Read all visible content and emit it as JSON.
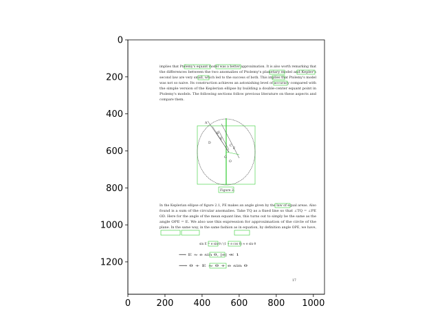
{
  "axes": {
    "x_ticks": [
      "0",
      "200",
      "400",
      "600",
      "800",
      "1000"
    ],
    "y_ticks": [
      "0",
      "200",
      "400",
      "600",
      "800",
      "1000",
      "1200"
    ],
    "xlim": [
      0,
      1060
    ],
    "ylim": [
      1375,
      0
    ]
  },
  "document": {
    "paragraph_1": [
      "implies that Ptolemy's equant model was a better approximation. It is also worth remarking that",
      "the differences between the two anomalies of Ptolemy's planetary model and Kepler's",
      "second law are very small, which led to the success of both. This implies that Ptolemy's model",
      "was not so naive. Its construction achieves an astonishing level of accuracy compared with",
      "the simple version of the Keplerian ellipse by building a double-center equant point in",
      "Ptolemy's models. The following sections follow previous literature on these aspects and",
      "compare them."
    ],
    "figure_caption": "Figure 2.",
    "figure_labels": {
      "point_a": "A",
      "point_b": "B",
      "point_e": "E",
      "point_d": "D",
      "point_c": "C",
      "point_f": "F",
      "point_g": "G",
      "point_o": "O"
    },
    "paragraph_2": [
      "In the Keplerian ellipse of figure 2.1, PE makes an angle given by the law of equal areas. Also",
      "found is a sum of the circular anomalies. Take TQ as a fixed line so that ∠TQ = ∠PE",
      "OD. Here for the angle of the mean equant line, this turns out to simply be the same as the",
      "angle OPE = E. We also use this expression for approximation of the circle of the",
      "plane. In the same way, in the same fashion as in equation, by definition angle OPE, we have,"
    ],
    "equations": [
      "sin E = e sin θ / (1 + e cos θ) ≈ e sin θ",
      "⟹   E ≈ e sin θ,   |e| ≪ 1",
      "⟹   θ + E ≈ θ + e sin θ"
    ],
    "page_number": "17"
  }
}
